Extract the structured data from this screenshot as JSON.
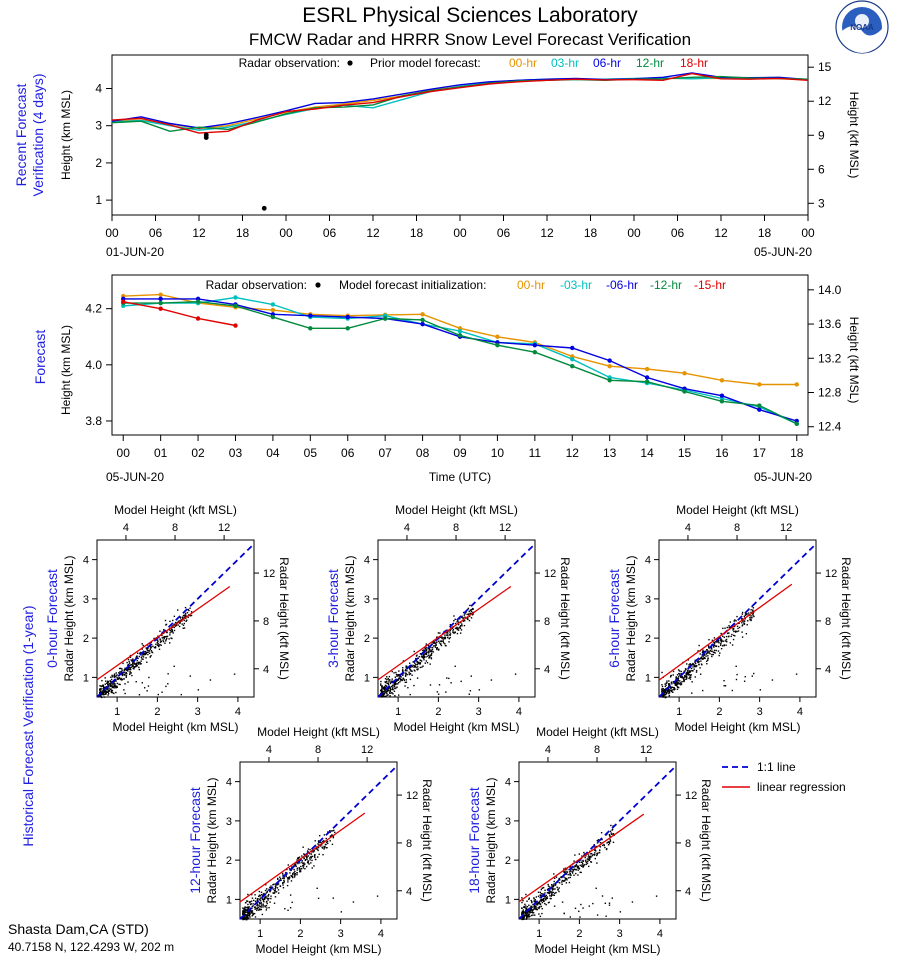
{
  "header": {
    "title": "ESRL Physical Sciences Laboratory",
    "subtitle": "FMCW Radar and HRRR Snow Level Forecast Verification",
    "logo_text": "NOAA"
  },
  "station": {
    "name": "Shasta Dam,CA (STD)",
    "coords": "40.7158 N, 122.4293 W, 202 m"
  },
  "colors": {
    "radar": "#000000",
    "f00": "#e59400",
    "f03": "#00bfbf",
    "f06": "#0000e0",
    "f12": "#008a3e",
    "f18": "#e00000",
    "side_label": "#2020e0",
    "one_to_one": "#0000d0",
    "regression": "#e00000"
  },
  "chart_data": [
    {
      "id": "recent",
      "type": "line",
      "side_label": [
        "Recent Forecast",
        "Verification (4 days)"
      ],
      "ylabel": "Height (km MSL)",
      "y2label": "Height (kft MSL)",
      "legend": {
        "obs_text": "Radar observation:",
        "model_text": "Prior model forecast:",
        "entries": [
          {
            "label": "00-hr",
            "color": "#e59400"
          },
          {
            "label": "03-hr",
            "color": "#00bfbf"
          },
          {
            "label": "06-hr",
            "color": "#0000e0"
          },
          {
            "label": "12-hr",
            "color": "#008a3e"
          },
          {
            "label": "18-hr",
            "color": "#e00000"
          }
        ]
      },
      "xlim": [
        0,
        96
      ],
      "ylim": [
        0.6,
        4.9
      ],
      "yticks": [
        1,
        2,
        3,
        4
      ],
      "y2ticks": [
        3,
        6,
        9,
        12,
        15
      ],
      "xtick_labels": [
        "00",
        "06",
        "12",
        "18",
        "00",
        "06",
        "12",
        "18",
        "00",
        "06",
        "12",
        "18",
        "00",
        "06",
        "12",
        "18",
        "00"
      ],
      "date_left": "01-JUN-20",
      "date_right": "05-JUN-20",
      "obs": [
        {
          "x": 13,
          "y": 2.75
        },
        {
          "x": 13,
          "y": 2.68
        },
        {
          "x": 21,
          "y": 0.78
        }
      ],
      "series": [
        {
          "color": "#e59400",
          "x": [
            0,
            4,
            8,
            12,
            16,
            20,
            24,
            28,
            32,
            36,
            40,
            44,
            48,
            52,
            56,
            60,
            64,
            68,
            72,
            76,
            80,
            84,
            88,
            92,
            96
          ],
          "y": [
            3.12,
            3.15,
            3.05,
            2.92,
            3.0,
            3.18,
            3.36,
            3.5,
            3.58,
            3.68,
            3.8,
            3.95,
            4.05,
            4.15,
            4.2,
            4.24,
            4.25,
            4.25,
            4.26,
            4.27,
            4.27,
            4.27,
            4.28,
            4.26,
            4.24
          ]
        },
        {
          "color": "#00bfbf",
          "x": [
            0,
            4,
            8,
            12,
            16,
            20,
            24,
            28,
            32,
            36,
            40,
            44,
            48,
            52,
            56,
            60,
            64,
            68,
            72,
            76,
            80,
            84,
            88,
            92,
            96
          ],
          "y": [
            3.1,
            3.14,
            3.0,
            2.88,
            2.96,
            3.12,
            3.3,
            3.46,
            3.55,
            3.48,
            3.7,
            3.92,
            4.06,
            4.15,
            4.22,
            4.25,
            4.26,
            4.25,
            4.27,
            4.28,
            4.26,
            4.29,
            4.28,
            4.27,
            4.25
          ]
        },
        {
          "color": "#0000e0",
          "x": [
            0,
            4,
            8,
            12,
            16,
            20,
            24,
            28,
            32,
            36,
            40,
            44,
            48,
            52,
            56,
            60,
            64,
            68,
            72,
            76,
            80,
            84,
            88,
            92,
            96
          ],
          "y": [
            3.12,
            3.24,
            3.06,
            2.94,
            3.05,
            3.22,
            3.4,
            3.6,
            3.62,
            3.72,
            3.85,
            3.98,
            4.1,
            4.18,
            4.22,
            4.25,
            4.27,
            4.24,
            4.26,
            4.3,
            4.42,
            4.3,
            4.29,
            4.3,
            4.24
          ]
        },
        {
          "color": "#008a3e",
          "x": [
            0,
            4,
            8,
            12,
            16,
            20,
            24,
            28,
            32,
            36,
            40,
            44,
            48,
            52,
            56,
            60,
            64,
            68,
            72,
            76,
            80,
            84,
            88,
            92,
            96
          ],
          "y": [
            3.08,
            3.12,
            2.85,
            2.96,
            2.9,
            3.1,
            3.32,
            3.48,
            3.5,
            3.56,
            3.8,
            3.94,
            4.04,
            4.14,
            4.2,
            4.22,
            4.24,
            4.22,
            4.25,
            4.26,
            4.3,
            4.32,
            4.28,
            4.27,
            4.25
          ]
        },
        {
          "color": "#e00000",
          "x": [
            0,
            4,
            8,
            12,
            16,
            20,
            24,
            28,
            32,
            36,
            40,
            44,
            48,
            52,
            56,
            60,
            64,
            68,
            72,
            76,
            80,
            84,
            88,
            92,
            96
          ],
          "y": [
            3.15,
            3.2,
            3.02,
            2.8,
            2.85,
            3.15,
            3.38,
            3.45,
            3.55,
            3.62,
            3.78,
            3.92,
            4.02,
            4.12,
            4.18,
            4.22,
            4.25,
            4.23,
            4.24,
            4.22,
            4.4,
            4.26,
            4.25,
            4.27,
            4.22
          ]
        }
      ]
    },
    {
      "id": "forecast",
      "type": "line",
      "side_label": [
        "Forecast"
      ],
      "ylabel": "Height (km MSL)",
      "y2label": "Height (kft MSL)",
      "xlabel": "Time (UTC)",
      "legend": {
        "obs_text": "Radar observation:",
        "model_text": "Model forecast initialization:",
        "entries": [
          {
            "label": "00-hr",
            "color": "#e59400"
          },
          {
            "label": "-03-hr",
            "color": "#00bfbf"
          },
          {
            "label": "-06-hr",
            "color": "#0000e0"
          },
          {
            "label": "-12-hr",
            "color": "#008a3e"
          },
          {
            "label": "-15-hr",
            "color": "#e00000"
          }
        ]
      },
      "xlim": [
        -0.3,
        18.3
      ],
      "ylim": [
        3.75,
        4.32
      ],
      "yticks": [
        3.8,
        4.0,
        4.2
      ],
      "ytick_labels": [
        "3.8",
        "4.0",
        "4.2"
      ],
      "y2ticks": [
        12.4,
        12.8,
        13.2,
        13.6,
        14.0
      ],
      "xtick_labels": [
        "00",
        "01",
        "02",
        "03",
        "04",
        "05",
        "06",
        "07",
        "08",
        "09",
        "10",
        "11",
        "12",
        "13",
        "14",
        "15",
        "16",
        "17",
        "18"
      ],
      "date_left": "05-JUN-20",
      "date_right": "05-JUN-20",
      "series": [
        {
          "color": "#e59400",
          "x": [
            0,
            1,
            2,
            3,
            4,
            5,
            6,
            7,
            8,
            9,
            10,
            11,
            12,
            13,
            14,
            15,
            16,
            17,
            18
          ],
          "y": [
            4.245,
            4.25,
            4.22,
            4.205,
            4.195,
            4.18,
            4.175,
            4.178,
            4.18,
            4.13,
            4.1,
            4.08,
            4.03,
            3.995,
            3.985,
            3.97,
            3.945,
            3.93,
            3.93
          ]
        },
        {
          "color": "#00bfbf",
          "x": [
            0,
            1,
            2,
            3,
            4,
            5,
            6,
            7,
            8,
            9,
            10,
            11,
            12,
            13,
            14,
            15,
            16,
            17,
            18
          ],
          "y": [
            4.21,
            4.22,
            4.22,
            4.24,
            4.215,
            4.17,
            4.165,
            4.175,
            4.145,
            4.12,
            4.08,
            4.075,
            4.02,
            3.955,
            3.935,
            3.91,
            3.88,
            3.85,
            3.79
          ]
        },
        {
          "color": "#0000e0",
          "x": [
            0,
            1,
            2,
            3,
            4,
            5,
            6,
            7,
            8,
            9,
            10,
            11,
            12,
            13,
            14,
            15,
            16,
            17,
            18
          ],
          "y": [
            4.235,
            4.235,
            4.235,
            4.215,
            4.18,
            4.175,
            4.17,
            4.165,
            4.145,
            4.1,
            4.08,
            4.07,
            4.06,
            4.015,
            3.955,
            3.915,
            3.89,
            3.84,
            3.8
          ]
        },
        {
          "color": "#008a3e",
          "x": [
            0,
            1,
            2,
            3,
            4,
            5,
            6,
            7,
            8,
            9,
            10,
            11,
            12,
            13,
            14,
            15,
            16,
            17,
            18
          ],
          "y": [
            4.22,
            4.22,
            4.225,
            4.21,
            4.17,
            4.13,
            4.13,
            4.165,
            4.16,
            4.105,
            4.07,
            4.045,
            3.995,
            3.945,
            3.94,
            3.905,
            3.87,
            3.855,
            3.79
          ]
        },
        {
          "color": "#e00000",
          "x": [
            0,
            1,
            2,
            3
          ],
          "y": [
            4.225,
            4.2,
            4.165,
            4.14
          ]
        }
      ]
    },
    {
      "id": "historical",
      "type": "scatter",
      "side_label": "Historical Forecast Verification (1-year)",
      "top_xlabel": "Model Height (kft MSL)",
      "bottom_xlabel": "Model Height (km MSL)",
      "ylabel": "Radar Height (km MSL)",
      "y2label": "Radar Height (kft MSL)",
      "xlim": [
        0.5,
        4.4
      ],
      "ylim": [
        0.5,
        4.5
      ],
      "ticks_km": [
        1,
        2,
        3,
        4
      ],
      "ticks_kft": [
        4,
        8,
        12
      ],
      "legend": [
        {
          "label": "1:1 line",
          "style": "dashed",
          "color": "#0000d0"
        },
        {
          "label": "linear regression",
          "style": "solid",
          "color": "#e00000"
        }
      ],
      "panels": [
        {
          "title": "0-hour Forecast",
          "regression": {
            "slope": 0.72,
            "intercept": 0.58,
            "x_end": 3.8
          }
        },
        {
          "title": "3-hour Forecast",
          "regression": {
            "slope": 0.72,
            "intercept": 0.58,
            "x_end": 3.8
          }
        },
        {
          "title": "6-hour Forecast",
          "regression": {
            "slope": 0.74,
            "intercept": 0.56,
            "x_end": 3.8
          }
        },
        {
          "title": "12-hour Forecast",
          "regression": {
            "slope": 0.73,
            "intercept": 0.57,
            "x_end": 3.6
          }
        },
        {
          "title": "18-hour Forecast",
          "regression": {
            "slope": 0.72,
            "intercept": 0.58,
            "x_end": 3.6
          }
        }
      ]
    }
  ]
}
